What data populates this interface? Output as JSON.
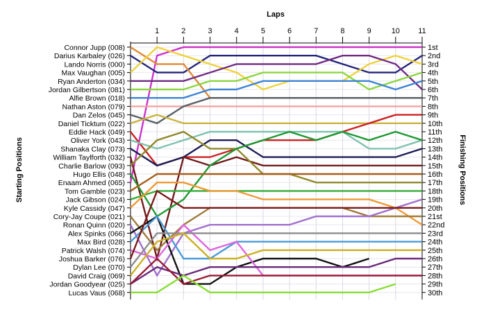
{
  "chart_data": {
    "type": "line",
    "title": "",
    "xlabel": "Laps",
    "ylabel_left": "Starting Positions",
    "ylabel_right": "Finishing Positions",
    "laps": [
      0,
      1,
      2,
      3,
      4,
      5,
      6,
      7,
      8,
      9,
      10,
      11
    ],
    "lap_tick_labels": [
      "1",
      "2",
      "3",
      "4",
      "5",
      "6",
      "7",
      "8",
      "9",
      "10",
      "11"
    ],
    "finish_labels": [
      "1st",
      "2nd",
      "3rd",
      "4th",
      "5th",
      "6th",
      "7th",
      "8th",
      "9th",
      "10th",
      "11th",
      "12th",
      "13th",
      "14th",
      "15th",
      "16th",
      "17th",
      "18th",
      "19th",
      "20th",
      "21st",
      "22nd",
      "23rd",
      "24th",
      "25th",
      "26th",
      "27th",
      "28th",
      "29th",
      "30th"
    ],
    "grid": true,
    "series": [
      {
        "name": "Connor Jupp (008)",
        "color": "#cc33cc",
        "positions": [
          17,
          2,
          1,
          1,
          1,
          1,
          1,
          1,
          1,
          1,
          1,
          1
        ]
      },
      {
        "name": "Darius Karbaley (026)",
        "color": "#23237a",
        "positions": [
          2,
          4,
          4,
          2,
          2,
          2,
          2,
          2,
          3,
          4,
          4,
          2
        ]
      },
      {
        "name": "Lando Norris (000)",
        "color": "#dd8833",
        "positions": [
          1,
          3,
          3,
          7,
          7,
          7,
          7,
          7,
          7,
          7,
          7,
          7
        ]
      },
      {
        "name": "Max Vaughan (005)",
        "color": "#efd23a",
        "positions": [
          4,
          1,
          2,
          3,
          4,
          6,
          5,
          5,
          5,
          3,
          2,
          3
        ]
      },
      {
        "name": "Ryan Anderton (034)",
        "color": "#702a82",
        "positions": [
          5,
          5,
          5,
          4,
          3,
          3,
          3,
          3,
          2,
          2,
          3,
          6
        ]
      },
      {
        "name": "Jordan Gilbertson (081)",
        "color": "#8cd640",
        "positions": [
          6,
          6,
          6,
          5,
          5,
          4,
          4,
          4,
          4,
          6,
          5,
          4
        ]
      },
      {
        "name": "Alfie Brown (018)",
        "color": "#3c84d4",
        "positions": [
          7,
          7,
          7,
          6,
          6,
          5,
          5,
          5,
          5,
          5,
          6,
          5
        ]
      },
      {
        "name": "Nathan Aston (079)",
        "color": "#f2a3a3",
        "positions": [
          8,
          8,
          8,
          8,
          8,
          8,
          8,
          8,
          8,
          8,
          8,
          8
        ]
      },
      {
        "name": "Dan Zelos (045)",
        "color": "#566066",
        "positions": [
          9,
          10,
          8,
          7,
          7,
          7,
          7,
          7,
          7,
          7,
          7,
          7
        ]
      },
      {
        "name": "Daniel Ticktum (022)",
        "color": "#c9b340",
        "positions": [
          10,
          9,
          10,
          10,
          10,
          10,
          10,
          10,
          10,
          10,
          10,
          10
        ]
      },
      {
        "name": "Eddie Hack (049)",
        "color": "#cc2222",
        "positions": [
          11,
          15,
          14,
          14,
          13,
          12,
          12,
          12,
          11,
          10,
          9,
          9
        ]
      },
      {
        "name": "Oliver York (043)",
        "color": "#7fc2b0",
        "positions": [
          12,
          13,
          12,
          11,
          11,
          11,
          11,
          11,
          11,
          13,
          13,
          12
        ]
      },
      {
        "name": "Shanaka Clay (073)",
        "color": "#1b1b55",
        "positions": [
          13,
          15,
          14,
          12,
          12,
          14,
          14,
          14,
          14,
          14,
          14,
          13
        ]
      },
      {
        "name": "William Taylforth (032)",
        "color": "#701a1a",
        "positions": [
          14,
          26,
          14,
          15,
          14,
          15,
          15,
          15,
          15,
          15,
          15,
          15
        ]
      },
      {
        "name": "Charlie Barlow (093)",
        "color": "#8f8829",
        "positions": [
          15,
          12,
          11,
          13,
          13,
          16,
          16,
          17,
          17,
          17,
          17,
          17
        ]
      },
      {
        "name": "Hugo Ellis (048)",
        "color": "#1e9932",
        "positions": [
          16,
          21,
          19,
          15,
          13,
          12,
          11,
          12,
          11,
          12,
          11,
          12
        ]
      },
      {
        "name": "Enaam Ahmed (065)",
        "color": "#a65f1a",
        "positions": [
          18,
          16,
          16,
          16,
          16,
          16,
          16,
          16,
          16,
          16,
          16,
          16
        ]
      },
      {
        "name": "Tom Gamble (023)",
        "color": "#33aa33",
        "positions": [
          19,
          18,
          18,
          18,
          18,
          18,
          18,
          18,
          18,
          18,
          18,
          18
        ]
      },
      {
        "name": "Jack Gibson (024)",
        "color": "#ee9933",
        "positions": [
          20,
          17,
          17,
          18,
          18,
          19,
          19,
          19,
          19,
          19,
          20,
          22
        ]
      },
      {
        "name": "Kyle Cassidy (047)",
        "color": "#a07a3a",
        "positions": [
          21,
          25,
          22,
          20,
          20,
          20,
          20,
          20,
          20,
          21,
          21,
          21
        ]
      },
      {
        "name": "Cory-Jay Coupe (021)",
        "color": "#a070cc",
        "positions": [
          22,
          28,
          23,
          22,
          22,
          22,
          22,
          21,
          21,
          21,
          20,
          19
        ]
      },
      {
        "name": "Ronan Quinn (020)",
        "color": "#111111",
        "positions": [
          23,
          21,
          29,
          29,
          27,
          26,
          26,
          26,
          27,
          26,
          null,
          null
        ]
      },
      {
        "name": "Alex Spinks (066)",
        "color": "#4a9ad8",
        "positions": [
          24,
          21,
          26,
          26,
          24,
          24,
          24,
          24,
          24,
          24,
          24,
          24
        ]
      },
      {
        "name": "Max Bird (028)",
        "color": "#dd66dd",
        "positions": [
          25,
          26,
          22,
          25,
          24,
          28,
          28,
          28,
          28,
          28,
          28,
          28
        ]
      },
      {
        "name": "Patrick Walsh (074)",
        "color": "#7a1a1a",
        "positions": [
          26,
          18,
          20,
          20,
          20,
          20,
          20,
          20,
          20,
          20,
          20,
          20
        ]
      },
      {
        "name": "Joshua Barker (076)",
        "color": "#8c8c8c",
        "positions": [
          27,
          23,
          23,
          23,
          23,
          23,
          23,
          23,
          23,
          23,
          23,
          23
        ]
      },
      {
        "name": "Dylan Lee (070)",
        "color": "#ccb022",
        "positions": [
          28,
          24,
          23,
          26,
          26,
          25,
          25,
          25,
          25,
          25,
          25,
          25
        ]
      },
      {
        "name": "David Craig (069)",
        "color": "#6a2a7a",
        "positions": [
          29,
          27,
          28,
          27,
          27,
          27,
          27,
          27,
          27,
          27,
          26,
          26
        ]
      },
      {
        "name": "Jordan Goodyear (025)",
        "color": "#991a33",
        "positions": [
          29,
          26,
          29,
          28,
          28,
          28,
          28,
          28,
          28,
          28,
          28,
          28
        ]
      },
      {
        "name": "Lucas Vaus (068)",
        "color": "#88dd33",
        "positions": [
          30,
          30,
          28,
          30,
          30,
          30,
          30,
          30,
          30,
          30,
          29,
          null
        ]
      }
    ]
  }
}
